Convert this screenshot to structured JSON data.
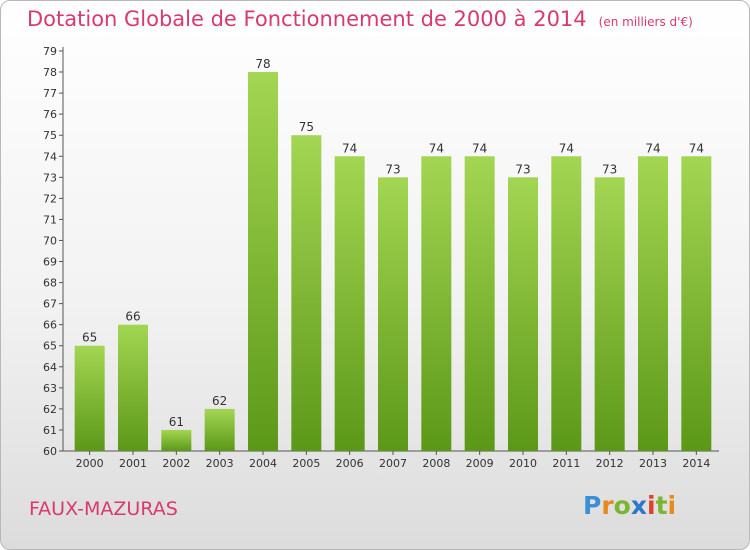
{
  "header": {
    "title": "Dotation Globale de Fonctionnement de 2000 à 2014",
    "unit": "(en milliers d'€)"
  },
  "footer": {
    "commune": "FAUX-MAZURAS",
    "logo": "Proxiti"
  },
  "colors": {
    "title": "#d9396f",
    "bar_light": "#9fd24e",
    "bar_dark": "#5f9a1a"
  },
  "chart_data": {
    "type": "bar",
    "title": "Dotation Globale de Fonctionnement de 2000 à 2014",
    "subtitle": "(en milliers d'€)",
    "categories": [
      "2000",
      "2001",
      "2002",
      "2003",
      "2004",
      "2005",
      "2006",
      "2007",
      "2008",
      "2009",
      "2010",
      "2011",
      "2012",
      "2013",
      "2014"
    ],
    "values": [
      65,
      66,
      61,
      62,
      78,
      75,
      74,
      73,
      74,
      74,
      73,
      74,
      73,
      74,
      74
    ],
    "xlabel": "",
    "ylabel": "",
    "ylim": [
      60,
      79
    ],
    "yticks": [
      60,
      61,
      62,
      63,
      64,
      65,
      66,
      67,
      68,
      69,
      70,
      71,
      72,
      73,
      74,
      75,
      76,
      77,
      78,
      79
    ],
    "grid": false,
    "data_labels": true
  }
}
